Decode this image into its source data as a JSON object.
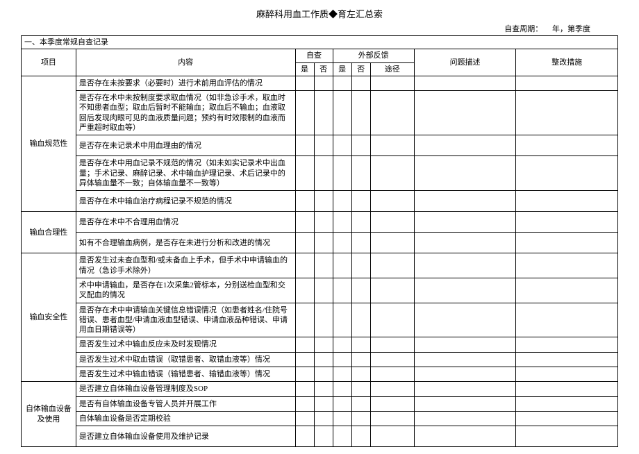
{
  "title": "麻醉科用血工作质◆育左汇总索",
  "period_label": "自查周期：",
  "period_year": "年，第季度",
  "section_header": "一、本季度常规自查记录",
  "headers": {
    "project": "项目",
    "content": "内容",
    "self_check": "自查",
    "external": "外部反馈",
    "yes": "是",
    "no": "否",
    "route": "途径",
    "problem_desc": "问题描述",
    "action": "整改措施"
  },
  "groups": [
    {
      "name": "输血规范性",
      "rows": [
        "是否存在未按要求（必要时）进行术前用血评估的情况",
        "是否存在术中未按制度要求取血情况（如非急诊手术，取血时不知患者血型；取血后暂时不能输血；取血后不输血；血液取回后发现肉眼可见的血液质量问题；预约有时效限制的血液而严重超时取血等）",
        "是否存在未记录术中用血理由的情况",
        "是否存在术中用血记录不规范的情况（如未如实记录术中出血量；手术记录、麻醉记录、术中输血护理记录、术后记录中的异体输血量不一致；自体输血量不一致等）",
        "是否存在术中输血治疗病程记录不规范的情况"
      ]
    },
    {
      "name": "输血合理性",
      "rows": [
        "是否存在术中不合理用血情况",
        "如有不合理输血病例，是否存在未进行分析和改进的情况"
      ]
    },
    {
      "name": "输血安全性",
      "rows": [
        "是否发生过未查血型和/或未备血上手术，但手术中申请输血的情况（急诊手术除外）",
        "术中申请输血，是否存在1次采集2管标本，分别送检血型和交叉配血的情况",
        "是否存在术中申请输血关键信息错误情况（如患者姓名/住院号错误、患者血型/申请血液血型错误、申请血液品种错误、申请用血日期错误等）",
        "是否发生过术中输血反应未及时发现情况",
        "是否发生过术中取血错误（取错患者、取错血液等）情况",
        "是否发生过术中输血错误（输错患者、输错血液等）情况"
      ]
    },
    {
      "name": "自体输血设备及使用",
      "rows": [
        "是否建立自体输血设备管理制度及SOP",
        "是否有自体输血设备专管人员并开展工作",
        "自体输血设备是否定期校验",
        "是否建立自体输血设备使用及维护记录"
      ]
    }
  ]
}
